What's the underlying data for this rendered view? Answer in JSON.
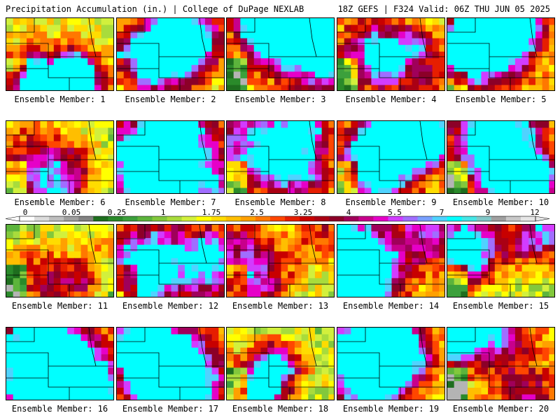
{
  "header": {
    "title": "Precipitation Accumulation (in.) | College of DuPage NEXLAB",
    "valid": "18Z GEFS | F324 Valid: 06Z THU JUN 05 2025"
  },
  "legend": {
    "labels": [
      "0",
      "0.05",
      "0.25",
      "1",
      "1.75",
      "2.5",
      "3.25",
      "4",
      "5.5",
      "7",
      "9",
      "12"
    ],
    "colors": [
      "#ffffff",
      "#dcdcdc",
      "#bebebe",
      "#a0a0a0",
      "#828282",
      "#1e6e1e",
      "#2a8a2a",
      "#3ca03c",
      "#5cb43c",
      "#82c83c",
      "#a8dc3c",
      "#d2f03c",
      "#ffff00",
      "#ffdc00",
      "#ffbe00",
      "#ffa000",
      "#ff7800",
      "#ff4600",
      "#e61e00",
      "#c80000",
      "#aa0014",
      "#8c0028",
      "#a0005a",
      "#c8008c",
      "#e600c8",
      "#d23cff",
      "#a06eff",
      "#78a0ff",
      "#50d2ff",
      "#00ffff",
      "#46e6e6",
      "#82c8c8",
      "#a0a0a0",
      "#c8c8c8",
      "#e6e6e6"
    ]
  },
  "members": [
    {
      "label": "Ensemble Member: 1",
      "intensity": 0.62
    },
    {
      "label": "Ensemble Member: 2",
      "intensity": 0.58
    },
    {
      "label": "Ensemble Member: 3",
      "intensity": 0.72
    },
    {
      "label": "Ensemble Member: 4",
      "intensity": 0.48
    },
    {
      "label": "Ensemble Member: 5",
      "intensity": 0.7
    },
    {
      "label": "Ensemble Member: 6",
      "intensity": 0.42
    },
    {
      "label": "Ensemble Member: 7",
      "intensity": 0.74
    },
    {
      "label": "Ensemble Member: 8",
      "intensity": 0.6
    },
    {
      "label": "Ensemble Member: 9",
      "intensity": 0.66
    },
    {
      "label": "Ensemble Member: 10",
      "intensity": 0.64
    },
    {
      "label": "Ensemble Member: 11",
      "intensity": 0.36
    },
    {
      "label": "Ensemble Member: 12",
      "intensity": 0.55
    },
    {
      "label": "Ensemble Member: 13",
      "intensity": 0.5
    },
    {
      "label": "Ensemble Member: 14",
      "intensity": 0.6
    },
    {
      "label": "Ensemble Member: 15",
      "intensity": 0.5
    },
    {
      "label": "Ensemble Member: 16",
      "intensity": 0.7
    },
    {
      "label": "Ensemble Member: 17",
      "intensity": 0.74
    },
    {
      "label": "Ensemble Member: 18",
      "intensity": 0.52
    },
    {
      "label": "Ensemble Member: 19",
      "intensity": 0.56
    },
    {
      "label": "Ensemble Member: 20",
      "intensity": 0.6
    }
  ]
}
